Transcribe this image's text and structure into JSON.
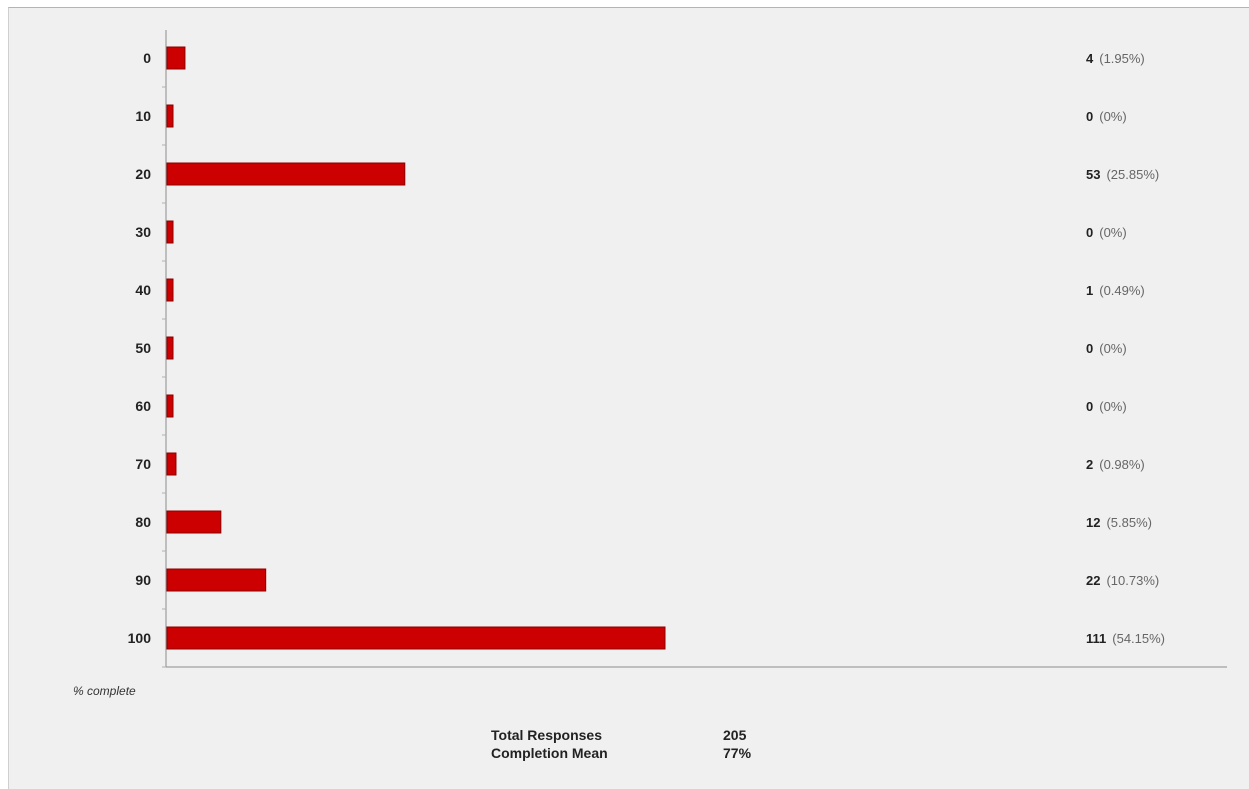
{
  "chart_data": {
    "type": "bar",
    "orientation": "horizontal",
    "xlabel": "% complete",
    "categories": [
      "0",
      "10",
      "20",
      "30",
      "40",
      "50",
      "60",
      "70",
      "80",
      "90",
      "100"
    ],
    "values": [
      4,
      0,
      53,
      0,
      1,
      0,
      0,
      2,
      12,
      22,
      111
    ],
    "percent_labels": [
      "(1.95%)",
      "(0%)",
      "(25.85%)",
      "(0%)",
      "(0.49%)",
      "(0%)",
      "(0%)",
      "(0.98%)",
      "(5.85%)",
      "(10.73%)",
      "(54.15%)"
    ],
    "bar_color": "#cc0000",
    "bar_edge_color": "#8b0000",
    "grid": false,
    "xlim": [
      0,
      250
    ]
  },
  "summary": {
    "total_label": "Total Responses",
    "total_value": "205",
    "mean_label": "Completion Mean",
    "mean_value": "77%"
  }
}
